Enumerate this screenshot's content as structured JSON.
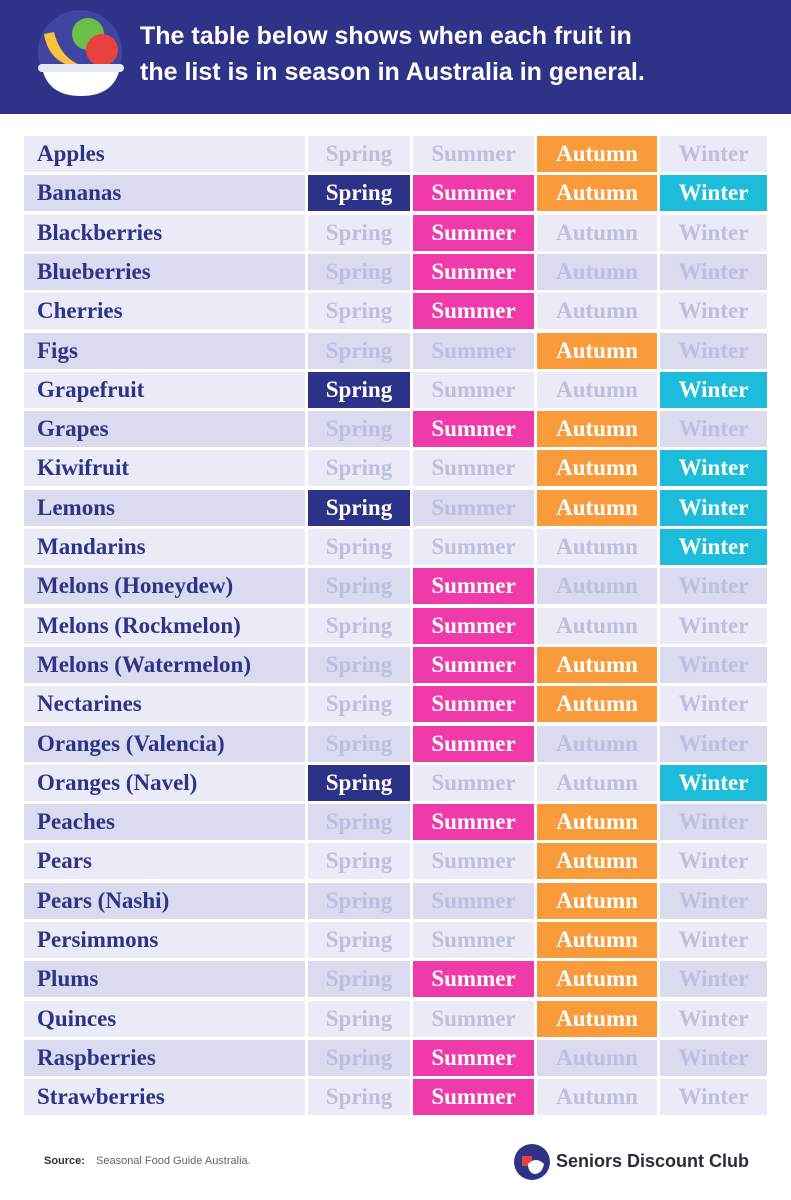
{
  "header": {
    "title_lines": [
      "The table below shows when each fruit in",
      "the list is in season in Australia in general."
    ]
  },
  "table": {
    "seasons": [
      "Spring",
      "Summer",
      "Autumn",
      "Winter"
    ],
    "season_colors": [
      "#2c3287",
      "#f13aa9",
      "#f99b3a",
      "#1dbcdb"
    ],
    "rows": [
      {
        "name": "Apples",
        "in_season": [
          false,
          false,
          true,
          false
        ]
      },
      {
        "name": "Bananas",
        "in_season": [
          true,
          true,
          true,
          true
        ]
      },
      {
        "name": "Blackberries",
        "in_season": [
          false,
          true,
          false,
          false
        ]
      },
      {
        "name": "Blueberries",
        "in_season": [
          false,
          true,
          false,
          false
        ]
      },
      {
        "name": "Cherries",
        "in_season": [
          false,
          true,
          false,
          false
        ]
      },
      {
        "name": "Figs",
        "in_season": [
          false,
          false,
          true,
          false
        ]
      },
      {
        "name": "Grapefruit",
        "in_season": [
          true,
          false,
          false,
          true
        ]
      },
      {
        "name": "Grapes",
        "in_season": [
          false,
          true,
          true,
          false
        ]
      },
      {
        "name": "Kiwifruit",
        "in_season": [
          false,
          false,
          true,
          true
        ]
      },
      {
        "name": "Lemons",
        "in_season": [
          true,
          false,
          true,
          true
        ]
      },
      {
        "name": "Mandarins",
        "in_season": [
          false,
          false,
          false,
          true
        ]
      },
      {
        "name": "Melons (Honeydew)",
        "in_season": [
          false,
          true,
          false,
          false
        ]
      },
      {
        "name": "Melons (Rockmelon)",
        "in_season": [
          false,
          true,
          false,
          false
        ]
      },
      {
        "name": "Melons (Watermelon)",
        "in_season": [
          false,
          true,
          true,
          false
        ]
      },
      {
        "name": "Nectarines",
        "in_season": [
          false,
          true,
          true,
          false
        ]
      },
      {
        "name": "Oranges (Valencia)",
        "in_season": [
          false,
          true,
          false,
          false
        ]
      },
      {
        "name": "Oranges (Navel)",
        "in_season": [
          true,
          false,
          false,
          true
        ]
      },
      {
        "name": "Peaches",
        "in_season": [
          false,
          true,
          true,
          false
        ]
      },
      {
        "name": "Pears",
        "in_season": [
          false,
          false,
          true,
          false
        ]
      },
      {
        "name": "Pears (Nashi)",
        "in_season": [
          false,
          false,
          true,
          false
        ]
      },
      {
        "name": "Persimmons",
        "in_season": [
          false,
          false,
          true,
          false
        ]
      },
      {
        "name": "Plums",
        "in_season": [
          false,
          true,
          true,
          false
        ]
      },
      {
        "name": "Quinces",
        "in_season": [
          false,
          false,
          true,
          false
        ]
      },
      {
        "name": "Raspberries",
        "in_season": [
          false,
          true,
          false,
          false
        ]
      },
      {
        "name": "Strawberries",
        "in_season": [
          false,
          true,
          false,
          false
        ]
      }
    ]
  },
  "footer": {
    "source_label": "Source:",
    "source": "Seasonal Food Guide Australia.",
    "brand": "Seniors Discount Club"
  }
}
